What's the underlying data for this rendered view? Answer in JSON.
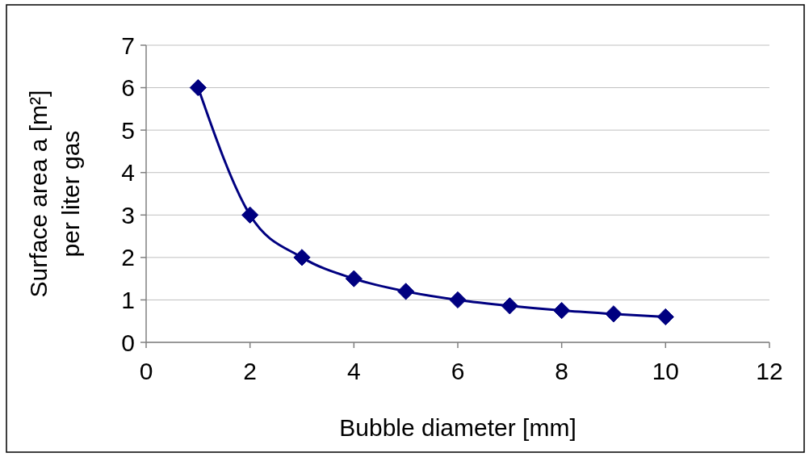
{
  "chart_data": {
    "type": "line",
    "xlabel": "Bubble diameter [mm]",
    "ylabel": "Surface area a [m²]\nper liter gas",
    "x": [
      1,
      2,
      3,
      4,
      5,
      6,
      7,
      8,
      9,
      10
    ],
    "series": [
      {
        "color": "#000080",
        "values": [
          6,
          3,
          2,
          1.5,
          1.2,
          1,
          0.86,
          0.75,
          0.67,
          0.6
        ]
      }
    ],
    "xlim": [
      0,
      12
    ],
    "xticks": [
      0,
      2,
      4,
      6,
      8,
      10,
      12
    ],
    "ylim": [
      0,
      7
    ],
    "yticks": [
      0,
      1,
      2,
      3,
      4,
      5,
      6,
      7
    ],
    "grid": "y",
    "marker": "diamond",
    "line_style": "solid"
  }
}
